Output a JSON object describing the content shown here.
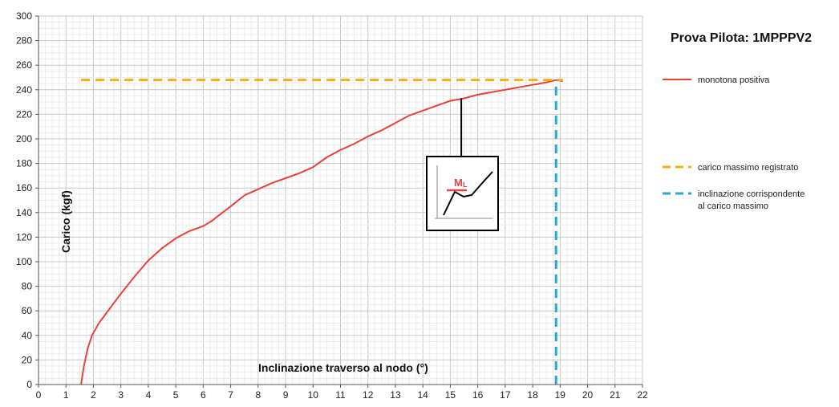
{
  "chart_data": {
    "type": "line",
    "title": "Prova Pilota: 1MPPPV2",
    "xlabel": "Inclinazione traverso al nodo (°)",
    "ylabel": "Carico (kgf)",
    "xlim": [
      0,
      22
    ],
    "ylim": [
      0,
      300
    ],
    "xticks": [
      "0",
      "1",
      "2",
      "3",
      "4",
      "5",
      "6",
      "7",
      "8",
      "9",
      "10",
      "11",
      "12",
      "13",
      "14",
      "15",
      "16",
      "17",
      "18",
      "19",
      "20",
      "21",
      "22"
    ],
    "yticks": [
      "0",
      "20",
      "40",
      "60",
      "80",
      "100",
      "120",
      "140",
      "160",
      "180",
      "200",
      "220",
      "240",
      "260",
      "280",
      "300"
    ],
    "grid": true,
    "legend_position": "right",
    "series": [
      {
        "name": "monotona positiva",
        "color": "#e8423a",
        "style": "solid",
        "x": [
          1.55,
          1.65,
          1.8,
          1.95,
          2.2,
          2.6,
          3.0,
          3.5,
          4.0,
          4.5,
          5.0,
          5.5,
          6.0,
          6.3,
          6.7,
          7.0,
          7.5,
          8.0,
          8.5,
          9.0,
          9.5,
          10.0,
          10.5,
          11.0,
          11.5,
          12.0,
          12.5,
          13.0,
          13.5,
          14.0,
          14.5,
          15.0,
          15.5,
          16.0,
          16.5,
          17.0,
          17.5,
          18.0,
          18.5,
          18.85,
          19.1
        ],
        "y": [
          0,
          15,
          30,
          40,
          50,
          62,
          74,
          88,
          101,
          111,
          119,
          125,
          129,
          133,
          140,
          145,
          154,
          159,
          164,
          168,
          172,
          177,
          185,
          191,
          196,
          202,
          207,
          213,
          219,
          223,
          227,
          231,
          233,
          236,
          238,
          240,
          242,
          244,
          246,
          248,
          247
        ]
      },
      {
        "name": "carico massimo registrato",
        "color": "#f5b014",
        "style": "dashed",
        "x": [
          1.55,
          19.1
        ],
        "y": [
          248,
          248
        ]
      },
      {
        "name": "inclinazione corrispondente al carico massimo",
        "color": "#2aa6cf",
        "style": "dashed",
        "x": [
          18.85,
          18.85
        ],
        "y": [
          0,
          248
        ]
      }
    ],
    "annotation": {
      "label": "ML",
      "label_main": "M",
      "label_sub": "L",
      "point": [
        15.4,
        233
      ],
      "color": "#e8423a"
    },
    "legend": [
      {
        "label": "monotona positiva",
        "color": "#e8423a",
        "style": "solid"
      },
      {
        "label": "carico massimo registrato",
        "color": "#f5b014",
        "style": "dashed"
      },
      {
        "label_lines": [
          "inclinazione corrispondente",
          "al carico massimo"
        ],
        "color": "#2aa6cf",
        "style": "dashed"
      }
    ]
  }
}
